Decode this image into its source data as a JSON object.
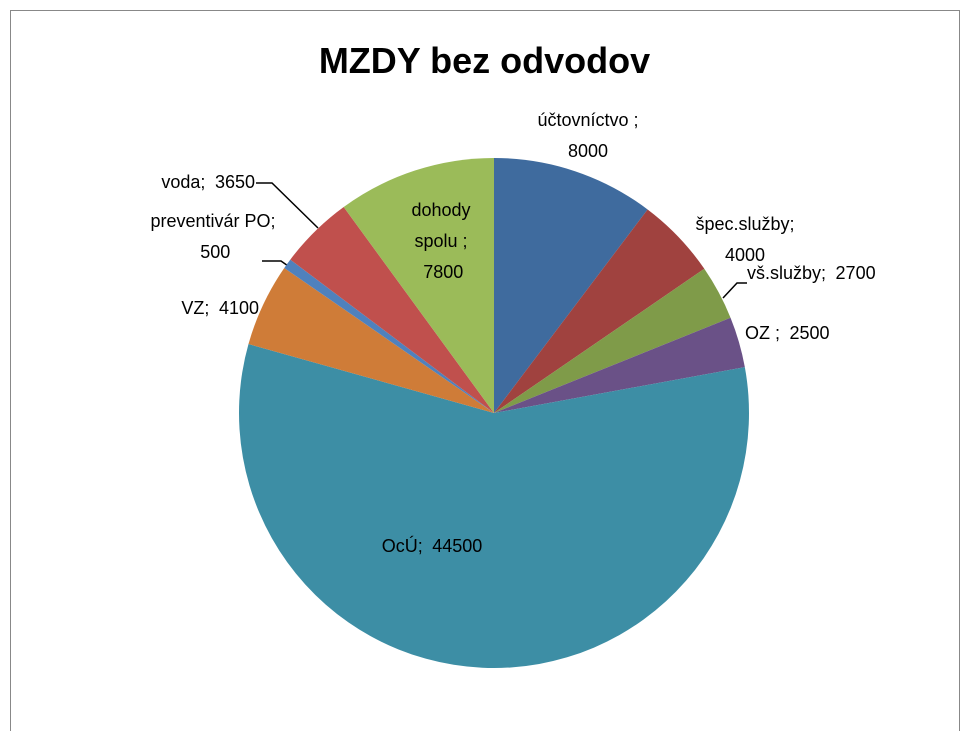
{
  "chart_data": {
    "type": "pie",
    "title": "MZDY bez odvodov",
    "categories": [
      "účtovníctvo ;",
      "špec.služby;",
      "vš.služby;",
      "OZ ;",
      "OcÚ;",
      "VZ;",
      "preventivár PO;",
      "voda;",
      "dohody spolu ;"
    ],
    "values": [
      8000,
      4000,
      2700,
      2500,
      44500,
      4100,
      500,
      3650,
      7800
    ],
    "colors": [
      "#3f6b9e",
      "#a0423f",
      "#7f9b49",
      "#6a5187",
      "#3d8ea5",
      "#cf7c38",
      "#4f81bd",
      "#c0504d",
      "#9bbb59"
    ]
  }
}
